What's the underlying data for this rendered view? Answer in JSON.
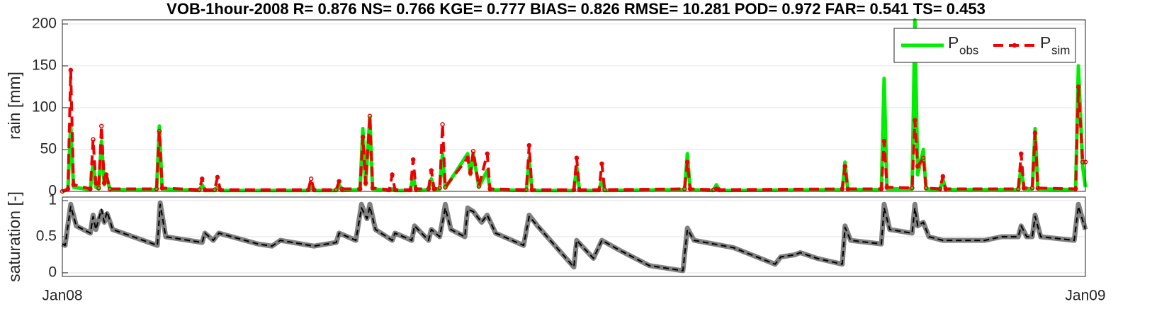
{
  "chart_data": [
    {
      "type": "line",
      "title": "VOB-1hour-2008  R= 0.876 NS= 0.766 KGE= 0.777 BIAS= 0.826 RMSE= 10.281 POD= 0.972 FAR= 0.541 TS= 0.453",
      "ylabel": "rain [mm]",
      "xlim": [
        0,
        366
      ],
      "ylim": [
        0,
        205
      ],
      "yticks": [
        0,
        50,
        100,
        150,
        200
      ],
      "grid": true,
      "legend": "upper right",
      "x": [
        0,
        2,
        3,
        4,
        10,
        11,
        12,
        13,
        14,
        15,
        15.7,
        17,
        33.7,
        34.7,
        35.7,
        49,
        50,
        51,
        54.5,
        55.5,
        56.5,
        88,
        89,
        90,
        98,
        99,
        100,
        106.5,
        107.5,
        108.5,
        110,
        111,
        117,
        118,
        119,
        124.5,
        125.5,
        126.5,
        131,
        132,
        133,
        135,
        136,
        137,
        145,
        146,
        147,
        149,
        152,
        153,
        166,
        167,
        168,
        183,
        184,
        185,
        192,
        193,
        194,
        222.6,
        223.6,
        224.6,
        233,
        234,
        235,
        279,
        280,
        281,
        293,
        294,
        295,
        304,
        305,
        306,
        308,
        309,
        314,
        315,
        316,
        342,
        343,
        344,
        347,
        348,
        349,
        362.5,
        363.5,
        365,
        366
      ],
      "series": [
        {
          "name": "P",
          "subscript": "obs",
          "color": "#00ee00",
          "style": "solid",
          "width": 5,
          "values": [
            0,
            2,
            80,
            5,
            2,
            35,
            5,
            3,
            60,
            8,
            20,
            2,
            2,
            78,
            3,
            1,
            8,
            1,
            1,
            5,
            1,
            1,
            5,
            1,
            1,
            8,
            1,
            2,
            75,
            8,
            88,
            3,
            1,
            3,
            1,
            1,
            18,
            1,
            2,
            15,
            2,
            3,
            45,
            4,
            45,
            20,
            45,
            5,
            25,
            2,
            1,
            40,
            1,
            1,
            30,
            1,
            1,
            15,
            1,
            2,
            45,
            2,
            1,
            8,
            1,
            2,
            35,
            2,
            2,
            135,
            3,
            3,
            205,
            20,
            50,
            3,
            2,
            15,
            2,
            2,
            30,
            3,
            3,
            75,
            3,
            2,
            150,
            30,
            5
          ]
        },
        {
          "name": "P",
          "subscript": "sim",
          "color": "#ee0000",
          "style": "dashed",
          "width": 4,
          "marker": "circle",
          "values": [
            0,
            3,
            145,
            8,
            3,
            62,
            10,
            4,
            78,
            10,
            20,
            3,
            3,
            72,
            4,
            2,
            15,
            2,
            2,
            17,
            2,
            2,
            15,
            2,
            2,
            12,
            3,
            3,
            65,
            10,
            90,
            4,
            2,
            20,
            2,
            2,
            38,
            3,
            3,
            25,
            3,
            4,
            80,
            5,
            40,
            22,
            48,
            6,
            45,
            3,
            2,
            55,
            2,
            2,
            40,
            2,
            2,
            33,
            2,
            3,
            35,
            3,
            2,
            3,
            2,
            3,
            30,
            3,
            3,
            60,
            5,
            4,
            85,
            30,
            40,
            4,
            3,
            18,
            3,
            3,
            45,
            4,
            4,
            70,
            4,
            3,
            125,
            35,
            35
          ]
        }
      ]
    },
    {
      "type": "line",
      "ylabel": "saturation [-]",
      "xlim": [
        0,
        366
      ],
      "xticks": [
        {
          "value": 0,
          "label": "Jan08"
        },
        {
          "value": 366,
          "label": "Jan09"
        }
      ],
      "ylim": [
        -0.05,
        1.05
      ],
      "yticks": [
        0,
        0.5,
        1
      ],
      "grid": true,
      "x": [
        0,
        1,
        3,
        5,
        10,
        11,
        12,
        14,
        15,
        16,
        18,
        34,
        35,
        37,
        50,
        51,
        54,
        56,
        70,
        75,
        78,
        90,
        98,
        99,
        105,
        107,
        109,
        110,
        112,
        118,
        119,
        125,
        126,
        131,
        132,
        135,
        137,
        139,
        144,
        145,
        147,
        150,
        152,
        155,
        165,
        167,
        170,
        183,
        184,
        190,
        193,
        200,
        210,
        222,
        223.6,
        226,
        240,
        255,
        257,
        262,
        264,
        270,
        279,
        280,
        282,
        293,
        294,
        296,
        304,
        305,
        306,
        308,
        310,
        315,
        330,
        336,
        342,
        343,
        345,
        347,
        348,
        350,
        362,
        363.5,
        366
      ],
      "series": [
        {
          "color": "#808080",
          "style": "solid",
          "width": 7,
          "values": [
            0.4,
            0.38,
            0.95,
            0.65,
            0.55,
            0.8,
            0.6,
            0.85,
            0.7,
            0.82,
            0.6,
            0.38,
            0.97,
            0.5,
            0.42,
            0.55,
            0.45,
            0.55,
            0.4,
            0.37,
            0.45,
            0.37,
            0.42,
            0.55,
            0.45,
            0.95,
            0.75,
            0.95,
            0.6,
            0.45,
            0.55,
            0.45,
            0.65,
            0.45,
            0.6,
            0.5,
            0.95,
            0.6,
            0.5,
            0.9,
            0.85,
            0.7,
            0.8,
            0.55,
            0.38,
            0.8,
            0.65,
            0.08,
            0.45,
            0.2,
            0.45,
            0.3,
            0.1,
            0.03,
            0.62,
            0.45,
            0.35,
            0.12,
            0.22,
            0.25,
            0.28,
            0.2,
            0.12,
            0.65,
            0.45,
            0.4,
            0.95,
            0.6,
            0.55,
            0.95,
            0.65,
            0.7,
            0.5,
            0.45,
            0.45,
            0.5,
            0.5,
            0.65,
            0.5,
            0.5,
            0.8,
            0.5,
            0.45,
            0.95,
            0.6
          ]
        },
        {
          "color": "#000000",
          "style": "dashed",
          "width": 2,
          "values": [
            0.4,
            0.38,
            0.92,
            0.65,
            0.55,
            0.78,
            0.6,
            0.88,
            0.7,
            0.85,
            0.6,
            0.38,
            0.95,
            0.5,
            0.42,
            0.55,
            0.45,
            0.55,
            0.4,
            0.37,
            0.45,
            0.37,
            0.42,
            0.55,
            0.45,
            0.9,
            0.75,
            0.92,
            0.6,
            0.45,
            0.55,
            0.45,
            0.65,
            0.45,
            0.6,
            0.5,
            0.9,
            0.6,
            0.5,
            0.88,
            0.85,
            0.7,
            0.8,
            0.55,
            0.38,
            0.78,
            0.65,
            0.08,
            0.45,
            0.2,
            0.45,
            0.3,
            0.1,
            0.03,
            0.6,
            0.45,
            0.35,
            0.12,
            0.22,
            0.25,
            0.28,
            0.2,
            0.12,
            0.63,
            0.45,
            0.4,
            0.9,
            0.6,
            0.55,
            0.9,
            0.65,
            0.7,
            0.5,
            0.45,
            0.45,
            0.5,
            0.5,
            0.65,
            0.5,
            0.5,
            0.78,
            0.5,
            0.45,
            0.92,
            0.6
          ]
        }
      ]
    }
  ]
}
